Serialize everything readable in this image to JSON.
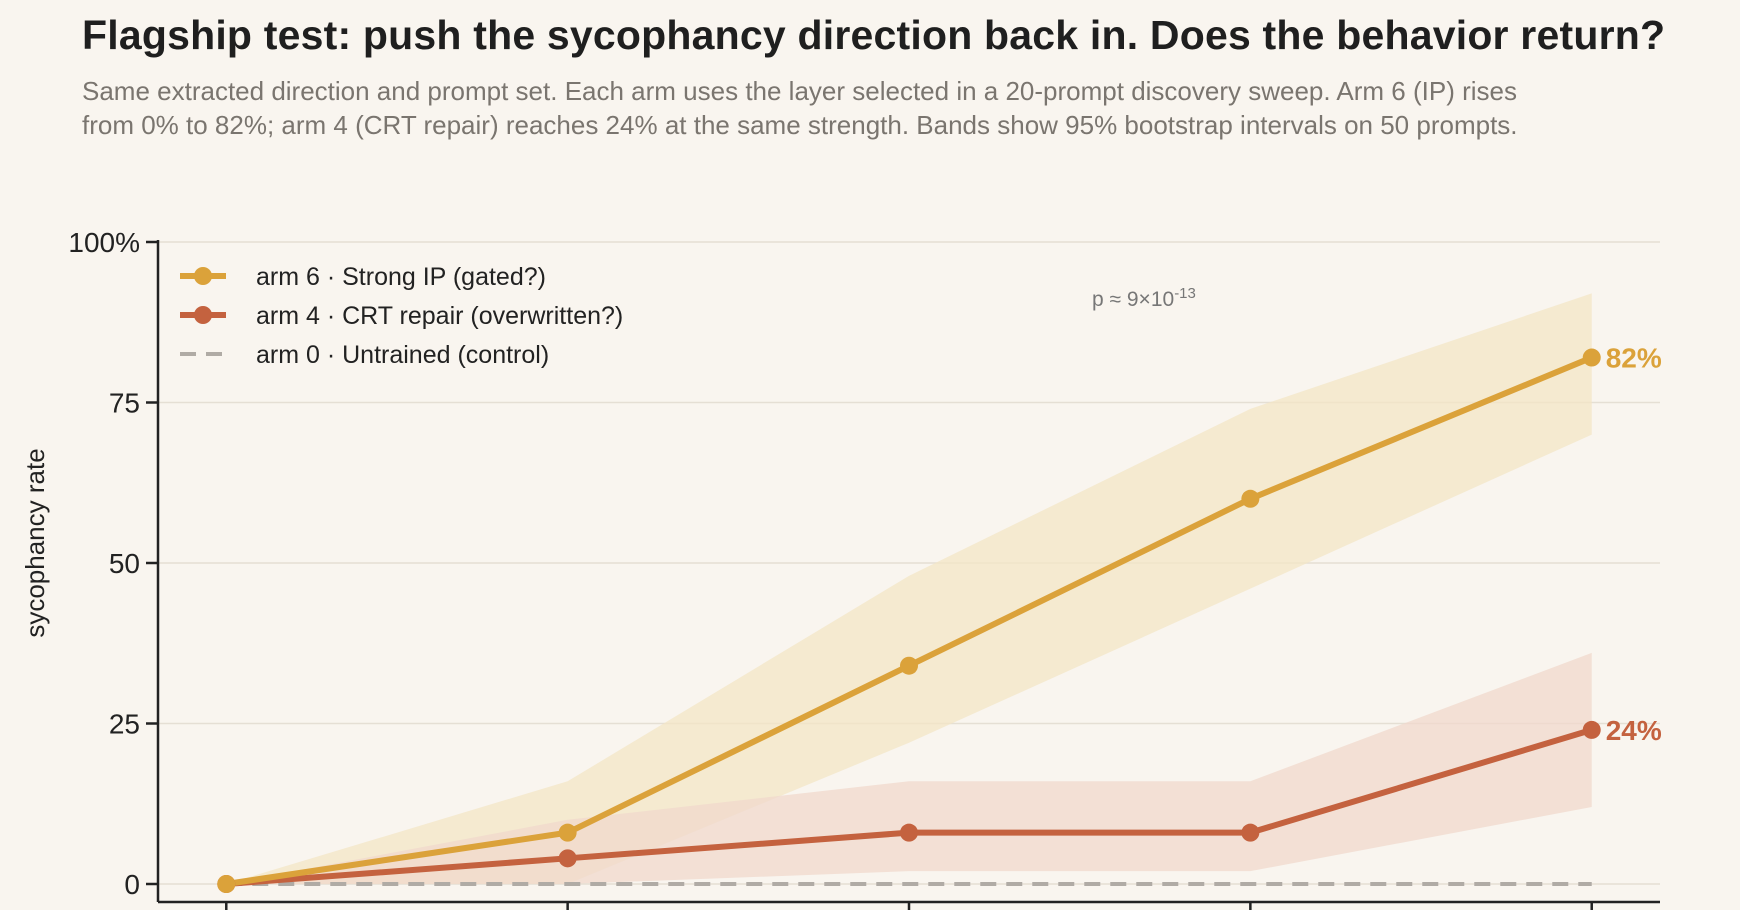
{
  "header": {
    "title": "Flagship test: push the sycophancy direction back in. Does the behavior return?",
    "subtitle_line1": "Same extracted direction and prompt set. Each arm uses the layer selected in a 20-prompt discovery sweep. Arm 6 (IP) rises",
    "subtitle_line2": "from 0% to 82%; arm 4 (CRT repair) reaches 24% at the same strength. Bands show 95% bootstrap intervals on 50 prompts."
  },
  "chart_data": {
    "type": "line",
    "title": "Flagship test: push the sycophancy direction back in. Does the behavior return?",
    "ylabel": "sycophancy rate",
    "xlabel": "",
    "ylim": [
      0,
      100
    ],
    "yticks": [
      {
        "value": 0,
        "label": "0"
      },
      {
        "value": 25,
        "label": "25"
      },
      {
        "value": 50,
        "label": "50"
      },
      {
        "value": 75,
        "label": "75"
      },
      {
        "value": 100,
        "label": "100%"
      }
    ],
    "x": [
      0,
      1,
      2,
      3,
      4
    ],
    "xlim": [
      -0.2,
      4.2
    ],
    "grid": "horizontal",
    "legend_position": "top-left",
    "series": [
      {
        "name": "arm 6 · Strong IP  (gated?)",
        "color": "#dba23a",
        "band_color": "#f3e6c6",
        "values": [
          0,
          8,
          34,
          60,
          82
        ],
        "ci_low": [
          0,
          0,
          22,
          46,
          70
        ],
        "ci_high": [
          0,
          16,
          48,
          74,
          92
        ],
        "end_label": "82%",
        "style": "solid"
      },
      {
        "name": "arm 4 · CRT repair  (overwritten?)",
        "color": "#c4623f",
        "band_color": "#f0d8cc",
        "values": [
          0,
          4,
          8,
          8,
          24
        ],
        "ci_low": [
          0,
          0,
          2,
          2,
          12
        ],
        "ci_high": [
          0,
          10,
          16,
          16,
          36
        ],
        "end_label": "24%",
        "style": "solid"
      },
      {
        "name": "arm 0 · Untrained  (control)",
        "color": "#b0aba5",
        "values": [
          0,
          0,
          0,
          0,
          0
        ],
        "style": "dashed"
      }
    ],
    "annotations": [
      {
        "text_base": "p ≈ 9×10",
        "text_exp": "-13"
      }
    ]
  }
}
